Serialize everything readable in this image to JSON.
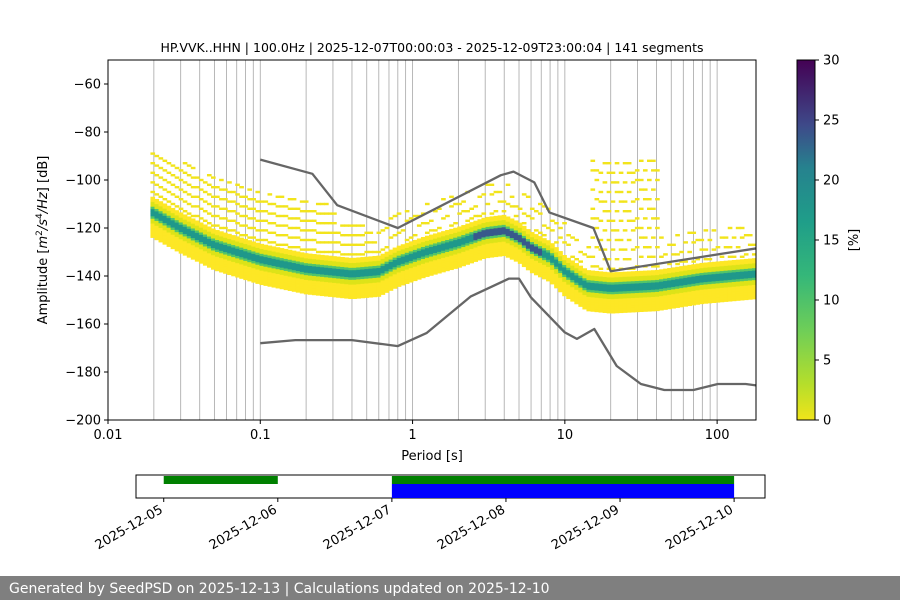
{
  "chart_data": {
    "type": "heatmap",
    "title": "HP.VVK..HHN | 100.0Hz | 2025-12-07T00:00:03 - 2025-12-09T23:00:04 | 141 segments",
    "xlabel": "Period [s]",
    "ylabel_parts": [
      "Amplitude [",
      "m",
      "2",
      "/",
      "s",
      "4",
      "/",
      "Hz",
      "] [dB]"
    ],
    "x_scale": "log",
    "xlim": [
      0.01,
      180
    ],
    "ylim": [
      -200,
      -50
    ],
    "x_ticks": [
      {
        "value": 0.01,
        "label": "0.01"
      },
      {
        "value": 0.1,
        "label": "0.1"
      },
      {
        "value": 1,
        "label": "1"
      },
      {
        "value": 10,
        "label": "10"
      },
      {
        "value": 100,
        "label": "100"
      }
    ],
    "y_ticks": [
      {
        "value": -60,
        "label": "−60"
      },
      {
        "value": -80,
        "label": "−80"
      },
      {
        "value": -100,
        "label": "−100"
      },
      {
        "value": -120,
        "label": "−120"
      },
      {
        "value": -140,
        "label": "−140"
      },
      {
        "value": -160,
        "label": "−160"
      },
      {
        "value": -180,
        "label": "−180"
      },
      {
        "value": -200,
        "label": "−200"
      }
    ],
    "grid_periods": [
      0.02,
      0.03,
      0.04,
      0.05,
      0.06,
      0.07,
      0.08,
      0.09,
      0.1,
      0.2,
      0.3,
      0.4,
      0.5,
      0.6,
      0.7,
      0.8,
      0.9,
      1,
      2,
      3,
      4,
      5,
      6,
      7,
      8,
      9,
      10,
      20,
      30,
      40,
      50,
      60,
      70,
      80,
      90,
      100
    ],
    "colorbar": {
      "label": "[%]",
      "min": 0,
      "max": 30,
      "ticks": [
        0,
        5,
        10,
        15,
        20,
        25,
        30
      ]
    },
    "mode_curve": [
      [
        0.019,
        -113
      ],
      [
        0.03,
        -120
      ],
      [
        0.05,
        -127
      ],
      [
        0.1,
        -133
      ],
      [
        0.2,
        -137
      ],
      [
        0.4,
        -139
      ],
      [
        0.6,
        -138
      ],
      [
        0.8,
        -134
      ],
      [
        1.2,
        -130
      ],
      [
        2,
        -126
      ],
      [
        3,
        -122
      ],
      [
        4,
        -121
      ],
      [
        5,
        -124
      ],
      [
        6,
        -128
      ],
      [
        8,
        -132
      ],
      [
        10,
        -138
      ],
      [
        14,
        -144
      ],
      [
        20,
        -145
      ],
      [
        40,
        -144
      ],
      [
        80,
        -141
      ],
      [
        180,
        -139
      ]
    ],
    "high_noise_model": [
      [
        0.1,
        -91.5
      ],
      [
        0.22,
        -97.4
      ],
      [
        0.32,
        -110.5
      ],
      [
        0.8,
        -120
      ],
      [
        3.8,
        -98
      ],
      [
        4.6,
        -96.5
      ],
      [
        6.3,
        -101
      ],
      [
        7.9,
        -113.5
      ],
      [
        15.4,
        -120
      ],
      [
        20,
        -138
      ],
      [
        180,
        -128.5
      ]
    ],
    "low_noise_model": [
      [
        0.1,
        -168
      ],
      [
        0.17,
        -166.7
      ],
      [
        0.4,
        -166.7
      ],
      [
        0.8,
        -169.2
      ],
      [
        1.24,
        -163.7
      ],
      [
        2.4,
        -148.6
      ],
      [
        4.3,
        -141.1
      ],
      [
        5,
        -141.1
      ],
      [
        6,
        -149
      ],
      [
        10,
        -163.5
      ],
      [
        12,
        -166.2
      ],
      [
        15.6,
        -162.1
      ],
      [
        21.9,
        -177.5
      ],
      [
        31.6,
        -185
      ],
      [
        45,
        -187.5
      ],
      [
        70,
        -187.5
      ],
      [
        101,
        -185
      ],
      [
        154,
        -185
      ],
      [
        180,
        -185.6
      ]
    ],
    "availability": {
      "dates": [
        "2025-12-05",
        "2025-12-06",
        "2025-12-07",
        "2025-12-08",
        "2025-12-09",
        "2025-12-10"
      ],
      "green_segments": [
        [
          "2025-12-05",
          "2025-12-06"
        ],
        [
          "2025-12-07",
          "2025-12-10"
        ]
      ],
      "blue_segments": [
        [
          "2025-12-07",
          "2025-12-10"
        ]
      ],
      "green_color": "#008000",
      "blue_color": "#0000ff"
    },
    "colors": {
      "model_line": "#666666",
      "grid": "#b0b0b0"
    }
  },
  "footer": {
    "text": "Generated by SeedPSD on 2025-12-13 | Calculations updated on 2025-12-10"
  }
}
